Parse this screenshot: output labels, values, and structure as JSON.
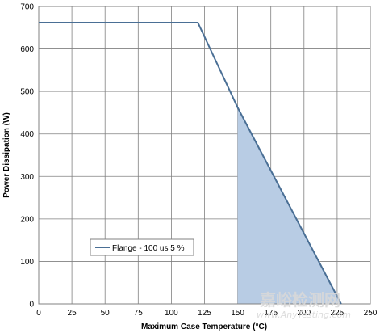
{
  "chart_data": {
    "type": "line",
    "title": "",
    "xlabel": "Maximum Case Temperature (°C)",
    "ylabel": "Power Dissipation (W)",
    "xlim": [
      0,
      250
    ],
    "ylim": [
      0,
      700
    ],
    "xticks": [
      0,
      25,
      50,
      75,
      100,
      125,
      150,
      175,
      200,
      225,
      250
    ],
    "yticks": [
      0,
      100,
      200,
      300,
      400,
      500,
      600,
      700
    ],
    "grid": true,
    "legend_position": "bottom-left",
    "series": [
      {
        "name": "Flange - 100 us 5 %",
        "color": "#4a6f95",
        "x": [
          0,
          120,
          150,
          228
        ],
        "y": [
          662,
          662,
          462,
          0
        ]
      }
    ],
    "shaded_region": {
      "color": "#b8cce4",
      "x": [
        150,
        150,
        228
      ],
      "y": [
        0,
        462,
        0
      ]
    }
  },
  "watermark": {
    "text": "嘉峪检测网",
    "url": "www.AnyTesting.com"
  }
}
